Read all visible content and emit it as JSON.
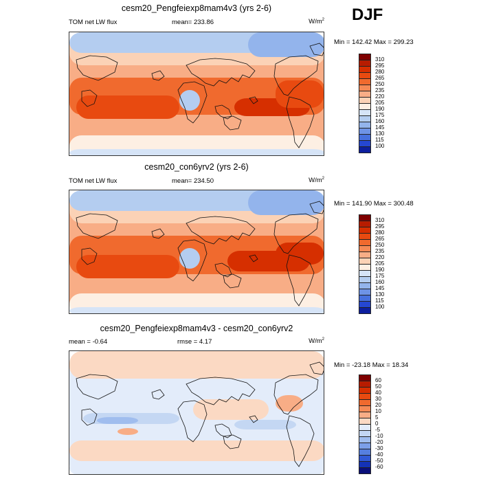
{
  "season": "DJF",
  "panels": [
    {
      "title": "cesm20_Pengfeiexp8mam4v3 (yrs 2-6)",
      "left_label": "TOM net LW flux",
      "center_label": "mean= 233.86",
      "units_base": "W/m",
      "units_exp": "2",
      "minmax": "Min = 142.42 Max = 299.23",
      "colorbar": {
        "levels": [
          "310",
          "295",
          "280",
          "265",
          "250",
          "235",
          "220",
          "205",
          "190",
          "175",
          "160",
          "145",
          "130",
          "115",
          "100"
        ],
        "colors": [
          "#7f0000",
          "#b71c00",
          "#d62f00",
          "#e84a10",
          "#f06a2e",
          "#f58a56",
          "#f8ad86",
          "#fbd2b6",
          "#fdefe3",
          "#d6e4f7",
          "#b4cdf0",
          "#93b4ec",
          "#6e93e6",
          "#4770de",
          "#2547d2",
          "#0d1f9e"
        ]
      }
    },
    {
      "title": "cesm20_con6yrv2 (yrs 2-6)",
      "left_label": "TOM net LW flux",
      "center_label": "mean= 234.50",
      "units_base": "W/m",
      "units_exp": "2",
      "minmax": "Min = 141.90 Max = 300.48",
      "colorbar": {
        "levels": [
          "310",
          "295",
          "280",
          "265",
          "250",
          "235",
          "220",
          "205",
          "190",
          "175",
          "160",
          "145",
          "130",
          "115",
          "100"
        ],
        "colors": [
          "#7f0000",
          "#b71c00",
          "#d62f00",
          "#e84a10",
          "#f06a2e",
          "#f58a56",
          "#f8ad86",
          "#fbd2b6",
          "#fdefe3",
          "#d6e4f7",
          "#b4cdf0",
          "#93b4ec",
          "#6e93e6",
          "#4770de",
          "#2547d2",
          "#0d1f9e"
        ]
      }
    },
    {
      "title": "cesm20_Pengfeiexp8mam4v3 - cesm20_con6yrv2",
      "left_label": "mean =  -0.64",
      "center_label": "rmse =   4.17",
      "units_base": "W/m",
      "units_exp": "2",
      "minmax": "Min = -23.18 Max =  18.34",
      "colorbar": {
        "levels": [
          "60",
          "50",
          "40",
          "30",
          "20",
          "10",
          "5",
          "0",
          "-5",
          "-10",
          "-20",
          "-30",
          "-40",
          "-50",
          "-60"
        ],
        "colors": [
          "#7f0000",
          "#b71c00",
          "#d62f00",
          "#e84a10",
          "#f06a2e",
          "#f58a56",
          "#f8ad86",
          "#fbd9c3",
          "#e3ecfa",
          "#c4d7f3",
          "#a0bdee",
          "#7c9fe8",
          "#567fe0",
          "#3159d6",
          "#1432b6",
          "#0a0f7a"
        ]
      }
    }
  ]
}
